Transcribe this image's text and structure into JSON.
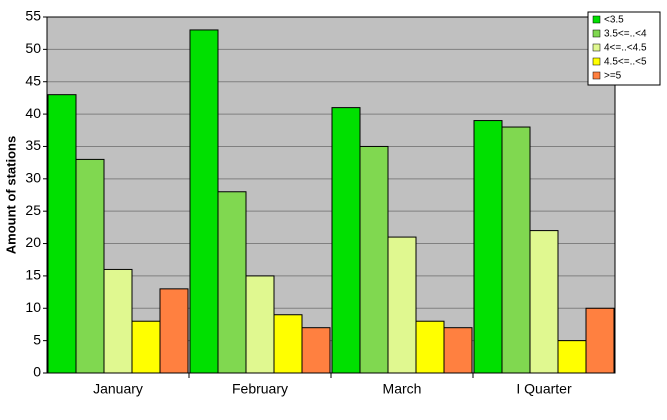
{
  "chart_data": {
    "type": "bar",
    "y_label": "Amount of stations",
    "categories": [
      "January",
      "February",
      "March",
      "I Quarter"
    ],
    "series": [
      {
        "name": "<3.5",
        "color": "#00e000",
        "values": [
          43,
          53,
          41,
          39
        ]
      },
      {
        "name": "3.5<=..<4",
        "color": "#80d850",
        "values": [
          33,
          28,
          35,
          38
        ]
      },
      {
        "name": "4<=..<4.5",
        "color": "#e0f890",
        "values": [
          16,
          15,
          21,
          22
        ]
      },
      {
        "name": "4.5<=..<5",
        "color": "#ffff00",
        "values": [
          8,
          9,
          8,
          5
        ]
      },
      {
        "name": ">=5",
        "color": "#ff8040",
        "values": [
          13,
          7,
          7,
          10
        ]
      }
    ],
    "ylim": [
      0,
      55
    ],
    "yticks": [
      0,
      5,
      10,
      15,
      20,
      25,
      30,
      35,
      40,
      45,
      50,
      55
    ],
    "grid": true,
    "legend": "top-right"
  }
}
